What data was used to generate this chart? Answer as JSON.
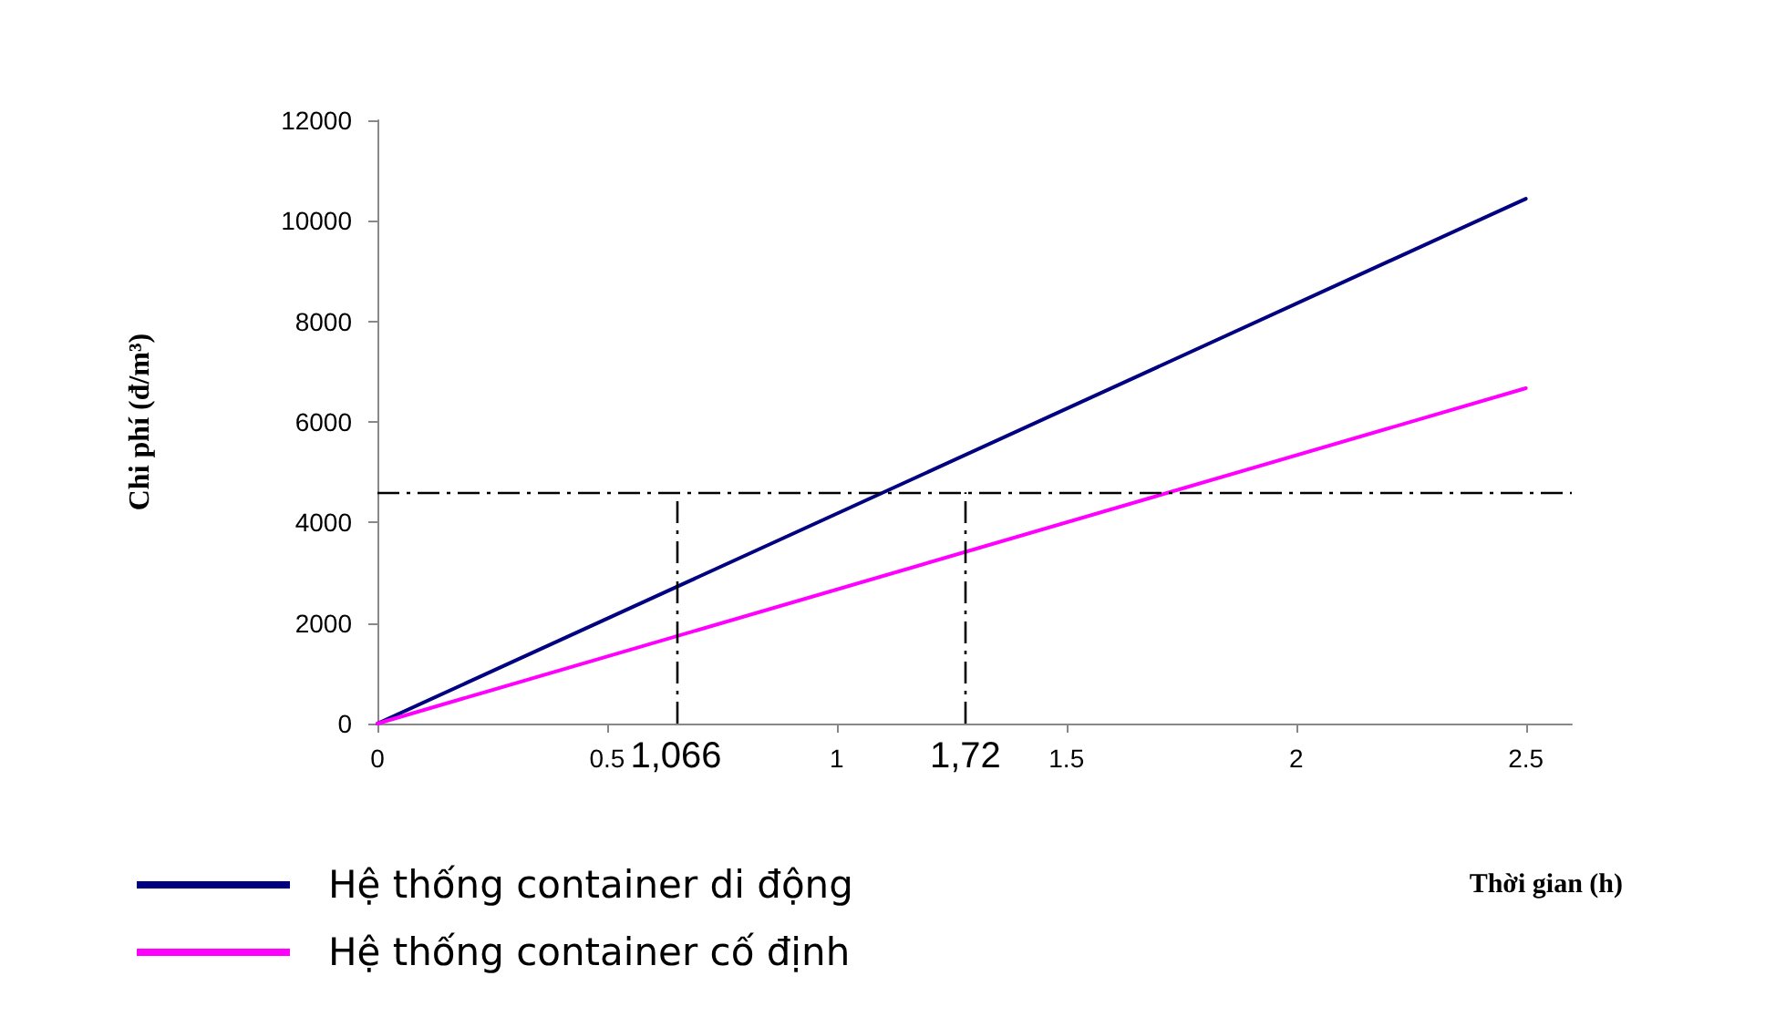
{
  "chart_data": {
    "type": "line",
    "xlabel": "Thời gian (h)",
    "ylabel": "Chi phí (đ/m³)",
    "x": [
      0,
      2.5
    ],
    "series": [
      {
        "name": "Hệ thống container di động",
        "color": "#000080",
        "values": [
          0,
          10440
        ]
      },
      {
        "name": "Hệ thống container cố định",
        "color": "#ff00ff",
        "values": [
          0,
          6670
        ]
      }
    ],
    "annotations": [
      "1,066",
      "1,72"
    ],
    "xlim": [
      0,
      2.6
    ],
    "xticks": [
      0,
      0.5,
      1,
      1.5,
      2,
      2.5
    ],
    "ylim": [
      0,
      12000
    ],
    "yticks": [
      0,
      2000,
      4000,
      6000,
      8000,
      10000,
      12000
    ],
    "ref_lines": [
      {
        "axis": "y",
        "value": 4600,
        "color": "#000000",
        "line_style": "dashed"
      },
      {
        "axis": "x",
        "value": 0.65,
        "color": "#000000",
        "line_style": "dashed"
      },
      {
        "axis": "x",
        "value": 1.28,
        "color": "#000000",
        "line_style": "dashed"
      }
    ],
    "grid": false,
    "legend": "bottom left",
    "marker": "none",
    "line_style": "solid"
  }
}
